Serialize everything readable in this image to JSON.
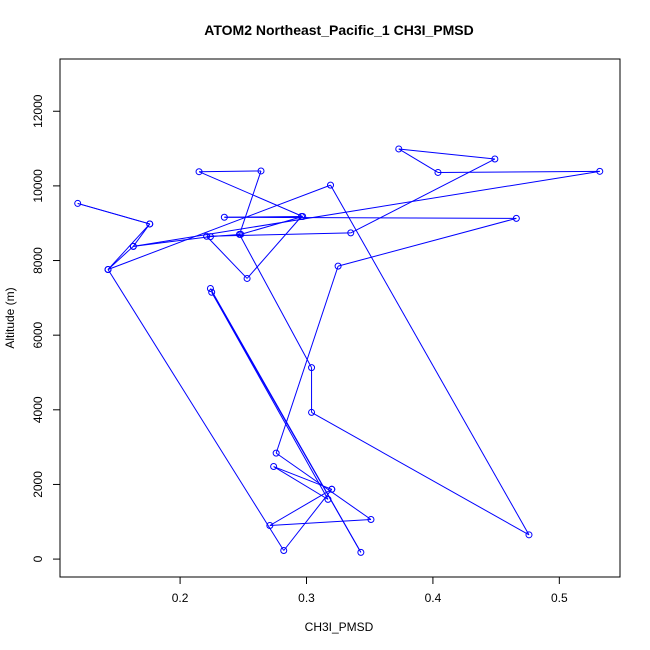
{
  "chart_data": {
    "type": "line",
    "title": "ATOM2 Northeast_Pacific_1 CH3I_PMSD",
    "xlabel": "CH3I_PMSD",
    "ylabel": "Altitude (m)",
    "xlim": [
      0.105,
      0.548
    ],
    "ylim": [
      -480,
      13400
    ],
    "xticks": [
      0.2,
      0.3,
      0.4,
      0.5
    ],
    "xtick_labels": [
      "0.2",
      "0.3",
      "0.4",
      "0.5"
    ],
    "yticks": [
      0,
      2000,
      4000,
      6000,
      8000,
      10000,
      12000
    ],
    "ytick_labels": [
      "0",
      "2000",
      "4000",
      "6000",
      "8000",
      "10000",
      "12000"
    ],
    "marker": "open-circle",
    "grid": false,
    "colors": {
      "series": "#0000ff",
      "axis": "#000000"
    },
    "series": [
      {
        "points": [
          [
            0.224,
            7250
          ],
          [
            0.343,
            180
          ],
          [
            0.225,
            7150
          ],
          [
            0.317,
            1600
          ],
          [
            0.274,
            2480
          ],
          [
            0.32,
            1870
          ],
          [
            0.271,
            900
          ],
          [
            0.351,
            1060
          ],
          [
            0.276,
            2840
          ],
          [
            0.325,
            7850
          ],
          [
            0.466,
            9130
          ],
          [
            0.235,
            9160
          ],
          [
            0.296,
            9180
          ],
          [
            0.253,
            7520
          ],
          [
            0.221,
            8650
          ],
          [
            0.335,
            8740
          ],
          [
            0.449,
            10720
          ],
          [
            0.373,
            10990
          ],
          [
            0.404,
            10360
          ],
          [
            0.532,
            10390
          ],
          [
            0.163,
            8380
          ],
          [
            0.176,
            8980
          ],
          [
            0.119,
            9530
          ],
          [
            0.176,
            8980
          ],
          [
            0.143,
            7760
          ],
          [
            0.319,
            10020
          ],
          [
            0.476,
            650
          ],
          [
            0.304,
            3930
          ],
          [
            0.304,
            5130
          ],
          [
            0.247,
            8700
          ],
          [
            0.264,
            10400
          ],
          [
            0.215,
            10380
          ],
          [
            0.297,
            9180
          ],
          [
            0.248,
            8700
          ],
          [
            0.224,
            8640
          ],
          [
            0.163,
            8380
          ],
          [
            0.143,
            7760
          ],
          [
            0.282,
            230
          ],
          [
            0.32,
            1870
          ]
        ]
      }
    ]
  }
}
